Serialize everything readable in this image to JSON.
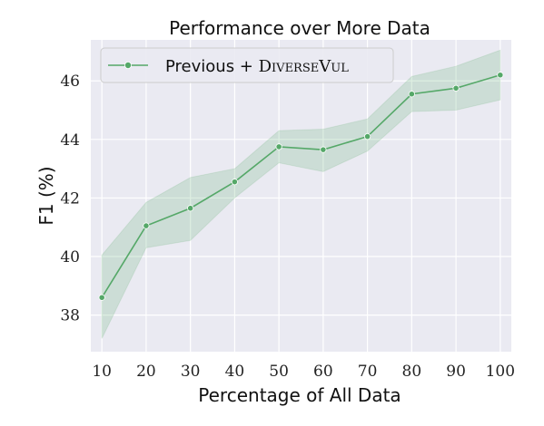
{
  "chart_data": {
    "type": "line",
    "title": "Performance over More Data",
    "xlabel": "Percentage of All Data",
    "ylabel": "F1 (%)",
    "x": [
      10,
      20,
      30,
      40,
      50,
      60,
      70,
      80,
      90,
      100
    ],
    "x_tick_labels": [
      "10",
      "20",
      "30",
      "40",
      "50",
      "60",
      "70",
      "80",
      "90",
      "100"
    ],
    "y_tick_values": [
      38,
      40,
      42,
      44,
      46
    ],
    "y_tick_labels": [
      "38",
      "40",
      "42",
      "44",
      "46"
    ],
    "xlim": [
      7.5,
      102.5
    ],
    "ylim": [
      36.75,
      47.4
    ],
    "grid": true,
    "legend_position": "top-left",
    "series": [
      {
        "name": "Previous + DiverseVul",
        "legend_prefix": "Previous + ",
        "legend_smallcaps": "DiverseVul",
        "color": "#55a868",
        "values": [
          38.6,
          41.05,
          41.65,
          42.55,
          43.75,
          43.65,
          44.1,
          45.55,
          45.75,
          46.2
        ],
        "ci_lower": [
          37.2,
          40.3,
          40.55,
          42.0,
          43.2,
          42.9,
          43.6,
          44.95,
          45.0,
          45.35
        ],
        "ci_upper": [
          40.05,
          41.85,
          42.7,
          43.0,
          44.3,
          44.35,
          44.7,
          46.15,
          46.5,
          47.05
        ]
      }
    ],
    "colors": {
      "plot_background": "#eaeaf2",
      "grid": "#ffffff",
      "band_fill": "#55a868",
      "line": "#55a868"
    }
  }
}
